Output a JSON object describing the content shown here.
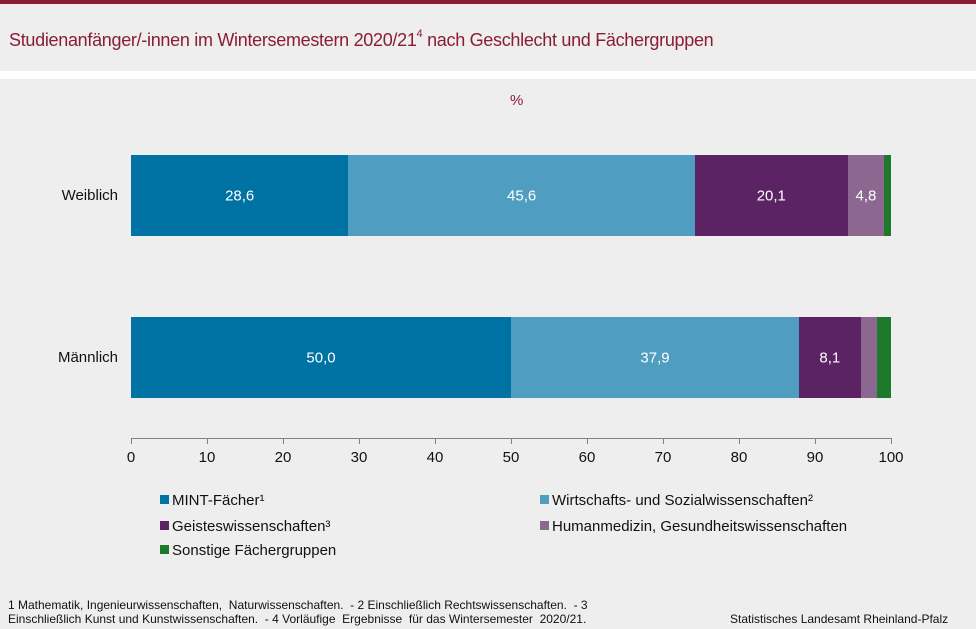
{
  "header": {
    "title_main": "Studienanfänger/-innen im Wintersemestern 2020/21",
    "title_sup": "4",
    "title_rest": " nach Geschlecht und Fächergruppen",
    "accent_color": "#8b1c36"
  },
  "chart_data": {
    "type": "bar",
    "orientation": "horizontal",
    "stacked": true,
    "title": "Studienanfänger/-innen im Wintersemestern 2020/21⁴ nach Geschlecht und Fächergruppen",
    "unit_label": "%",
    "xlabel": "",
    "ylabel": "",
    "xlim": [
      0,
      100
    ],
    "x_ticks": [
      "0",
      "10",
      "20",
      "30",
      "40",
      "50",
      "60",
      "70",
      "80",
      "90",
      "100"
    ],
    "categories": [
      "Weiblich",
      "Männlich"
    ],
    "series": [
      {
        "name": "MINT-Fächer¹",
        "color": "#0072a3",
        "values": [
          28.6,
          50.0
        ],
        "labels": [
          "28,6",
          "50,0"
        ]
      },
      {
        "name": "Wirtschafts- und Sozialwissenschaften²",
        "color": "#4f9dc0",
        "values": [
          45.6,
          37.9
        ],
        "labels": [
          "45,6",
          "37,9"
        ]
      },
      {
        "name": "Geisteswissenschaften³",
        "color": "#5b2363",
        "values": [
          20.1,
          8.1
        ],
        "labels": [
          "20,1",
          "8,1"
        ]
      },
      {
        "name": "Humanmedizin, Gesundheitswissenschaften",
        "color": "#8c6891",
        "values": [
          4.8,
          2.1
        ],
        "labels": [
          "4,8",
          ""
        ]
      },
      {
        "name": "Sonstige Fächergruppen",
        "color": "#1e7a2b",
        "values": [
          0.9,
          1.9
        ],
        "labels": [
          "",
          ""
        ]
      }
    ],
    "legend_position": "bottom",
    "grid": false
  },
  "footnotes": {
    "line1": "1 Mathematik, Ingenieurwissenschaften,  Naturwissenschaften.  - 2 Einschließlich Rechtswissenschaften.  - 3",
    "line2": "Einschließlich Kunst und Kunstwissenschaften.  - 4 Vorläufige  Ergebnisse  für das Wintersemester  2020/21."
  },
  "source": "Statistisches Landesamt Rheinland-Pfalz"
}
